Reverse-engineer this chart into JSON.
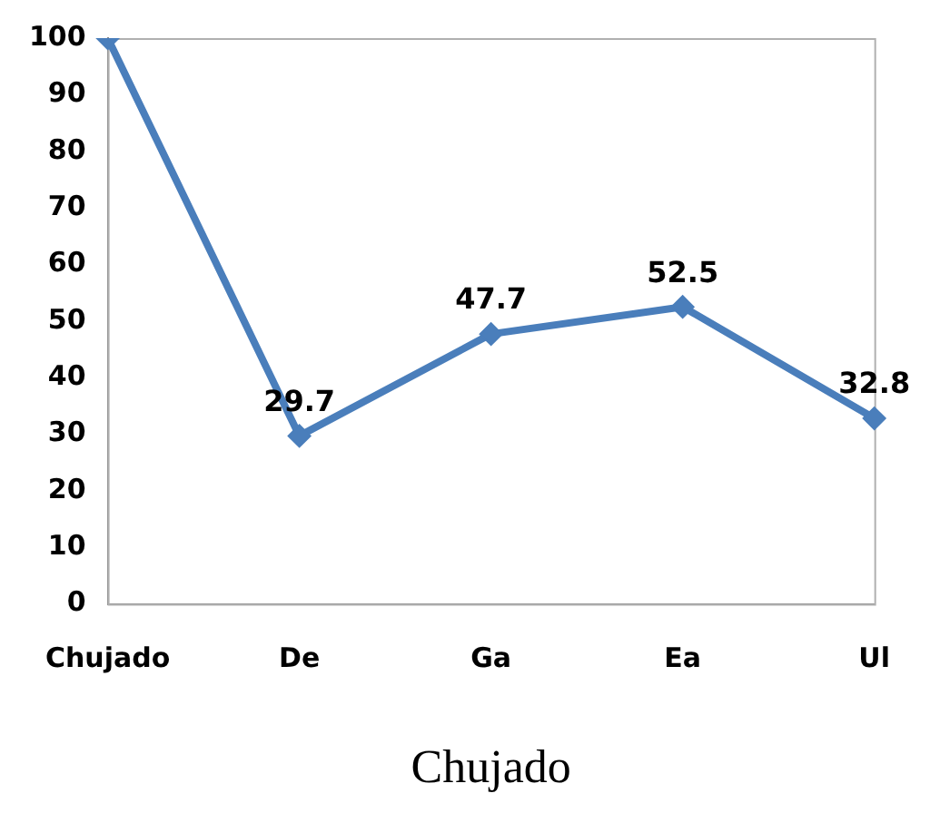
{
  "chart_data": {
    "type": "line",
    "xlabel": "Chujado",
    "categories": [
      "Chujado",
      "De",
      "Ga",
      "Ea",
      "Ul"
    ],
    "series": [
      {
        "color": "#4a7ebb",
        "values": [
          100,
          29.7,
          47.7,
          52.5,
          32.8
        ],
        "value_labels": [
          null,
          "29.7",
          "47.7",
          "52.5",
          "32.8"
        ]
      }
    ],
    "ylim": [
      0,
      100
    ],
    "yticks": [
      0,
      10,
      20,
      30,
      40,
      50,
      60,
      70,
      80,
      90,
      100
    ],
    "grid": false,
    "legend": false,
    "marker": "diamond",
    "line_style": "solid"
  }
}
